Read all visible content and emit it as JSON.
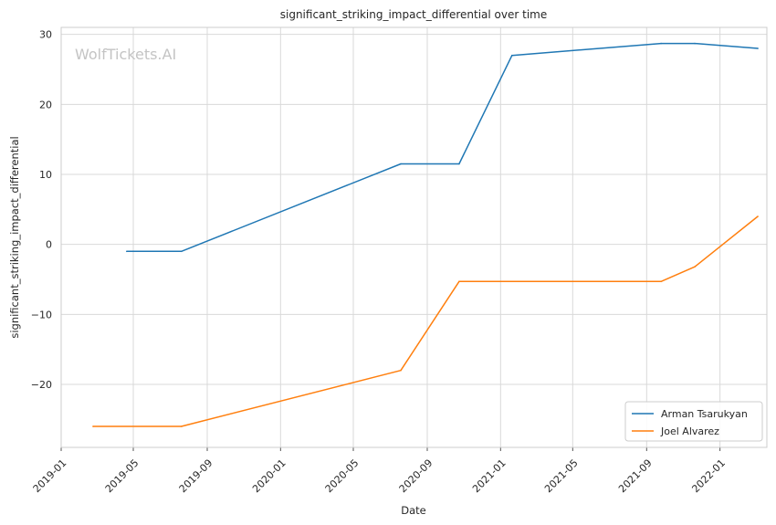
{
  "watermark": "WolfTickets.AI",
  "chart_data": {
    "type": "line",
    "title": "significant_striking_impact_differential over time",
    "xlabel": "Date",
    "ylabel": "significant_striking_impact_differential",
    "x_type": "date",
    "xlim": [
      "2019-01-01",
      "2022-03-20"
    ],
    "ylim": [
      -29,
      31
    ],
    "x_ticks": [
      "2019-01",
      "2019-05",
      "2019-09",
      "2020-01",
      "2020-05",
      "2020-09",
      "2021-01",
      "2021-05",
      "2021-09",
      "2022-01"
    ],
    "y_ticks": [
      30,
      20,
      10,
      0,
      -10,
      -20
    ],
    "y_tick_labels": [
      "30",
      "20",
      "10",
      "0",
      "−10",
      "−20"
    ],
    "grid": true,
    "legend_position": "lower-right",
    "series": [
      {
        "name": "Arman Tsarukyan",
        "color": "#1f77b4",
        "points": [
          {
            "x": "2019-04-20",
            "y": -1
          },
          {
            "x": "2019-07-20",
            "y": -1
          },
          {
            "x": "2020-07-19",
            "y": 11.5
          },
          {
            "x": "2020-10-24",
            "y": 11.5
          },
          {
            "x": "2021-01-20",
            "y": 27
          },
          {
            "x": "2021-09-25",
            "y": 28.7
          },
          {
            "x": "2021-11-20",
            "y": 28.7
          },
          {
            "x": "2022-03-05",
            "y": 28
          }
        ]
      },
      {
        "name": "Joel Alvarez",
        "color": "#ff7f0e",
        "points": [
          {
            "x": "2019-02-23",
            "y": -26
          },
          {
            "x": "2019-07-20",
            "y": -26
          },
          {
            "x": "2020-07-19",
            "y": -18
          },
          {
            "x": "2020-10-24",
            "y": -5.3
          },
          {
            "x": "2021-09-25",
            "y": -5.3
          },
          {
            "x": "2021-11-20",
            "y": -3.2
          },
          {
            "x": "2022-03-05",
            "y": 4
          }
        ]
      }
    ]
  }
}
